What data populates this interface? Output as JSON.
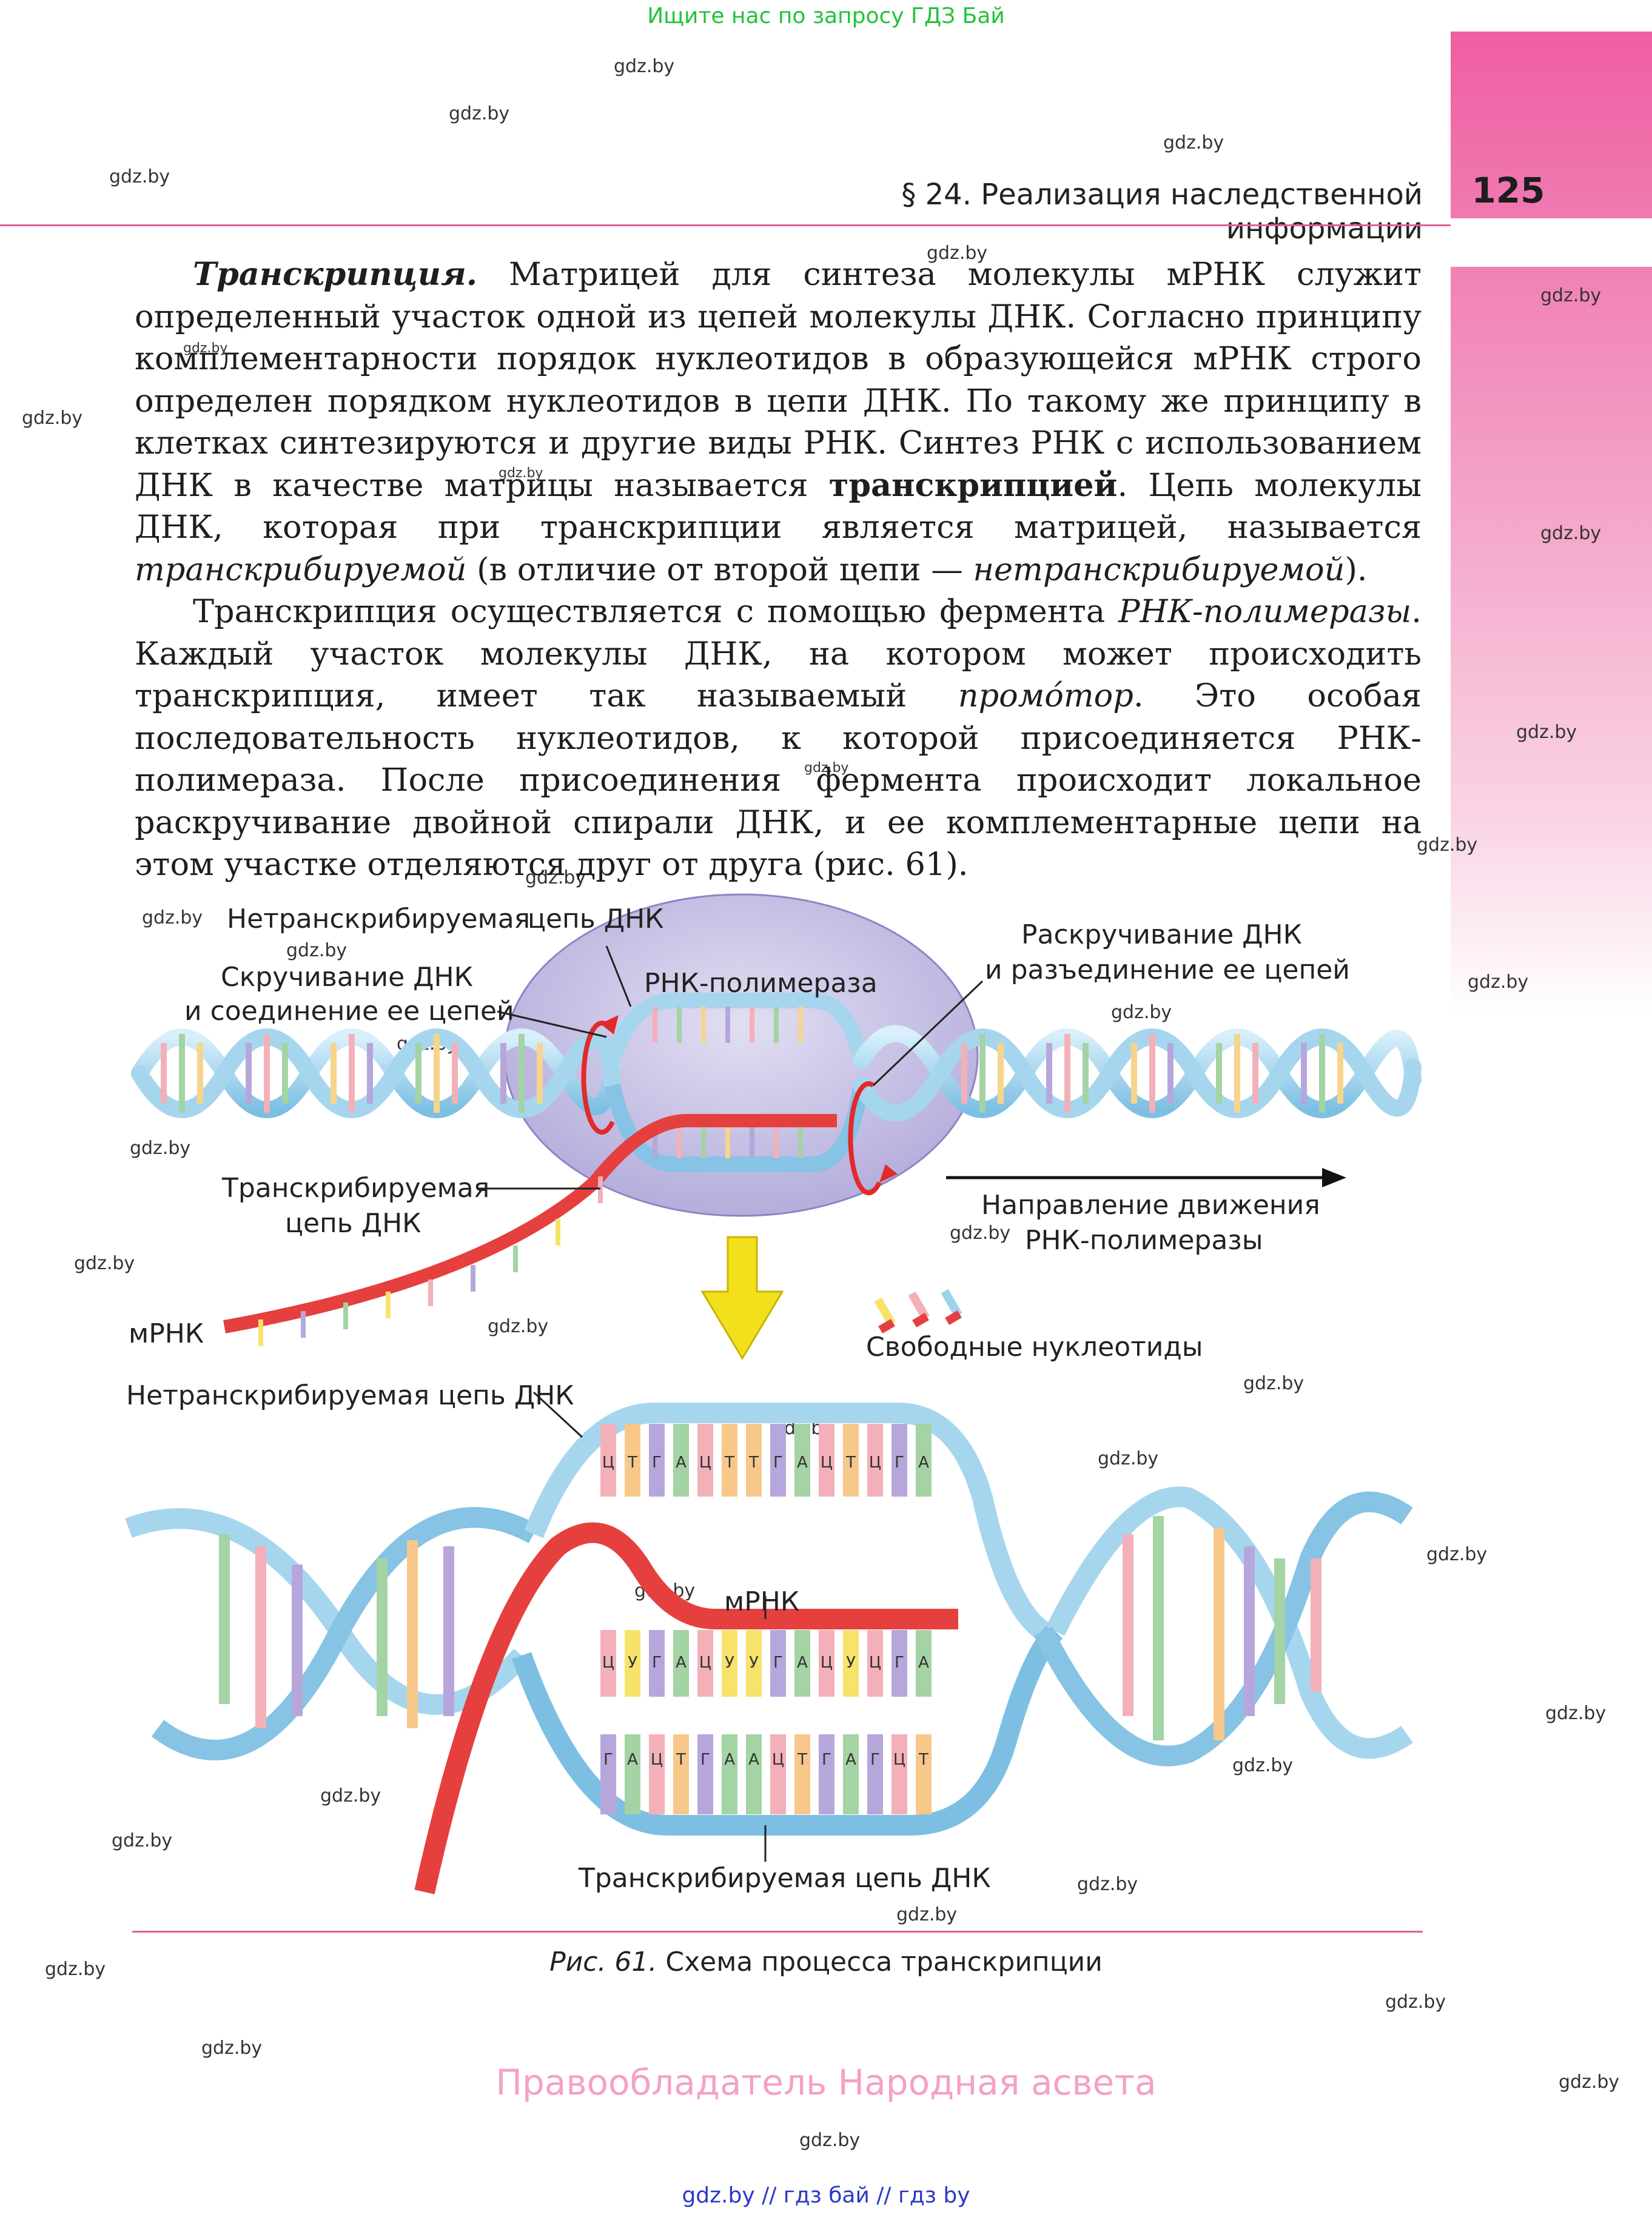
{
  "banner": "Ищите нас по запросу ГДЗ Бай",
  "header": {
    "section_title": "§ 24. Реализация наследственной информации",
    "page_number": "125"
  },
  "watermark": "gdz.by",
  "body": {
    "p1_term": "Транскрипция.",
    "p1_a": " Матрицей для синтеза молекулы мРНК служит определенный участок одной из цепей молекулы ДНК. Согласно принципу комплементарности порядок нуклеотидов в образующейся мРНК строго определен порядком нуклеотидов в цепи ДНК. По такому же принципу в клетках синтезируются и другие виды РНК. Синтез РНК с использованием ДНК в качестве матрицы называется ",
    "p1_bold": "транскрипцией",
    "p1_b": ". Цепь молекулы ДНК, которая при транскрипции является матрицей, называется ",
    "p1_it1": "транскрибируемой",
    "p1_c": " (в отличие от второй цепи — ",
    "p1_it2": "нетранскрибируемой",
    "p1_d": ").",
    "p2_a": "Транскрипция осуществляется с помощью фермента ",
    "p2_it1": "РНК-полимеразы",
    "p2_b": ". Каждый участок молекулы ДНК, на котором может происходить транскрипция, имеет так называемый ",
    "p2_it2": "промо́тор",
    "p2_c": ". Это особая последовательность нуклеотидов, к которой присоединяется РНК-полимераза. После присоединения фермента происходит локальное раскручивание двойной спирали ДНК, и ее комплементарные цепи на этом участке отделяются друг от друга (рис. 61)."
  },
  "figure": {
    "top_labels": {
      "nontranscribed_a": "Нетранскрибируемая",
      "nontranscribed_b": "цепь ДНК",
      "winding_1": "Скручивание ДНК",
      "winding_2": "и соединение ее цепей",
      "rna_polymerase": "РНК-полимераза",
      "unwinding_1": "Раскручивание ДНК",
      "unwinding_2": "и разъединение ее цепей",
      "transcribed_1": "Транскрибируемая",
      "transcribed_2": "цепь ДНК",
      "direction_1": "Направление движения",
      "direction_2": "РНК-полимеразы",
      "mrna": "мРНК",
      "free_nucleotides": "Свободные нуклеотиды"
    },
    "bottom_labels": {
      "nontranscribed": "Нетранскрибируемая цепь ДНК",
      "mrna": "мРНК",
      "transcribed": "Транскрибируемая цепь ДНК"
    },
    "top_strand_bases": [
      "Ц",
      "Т",
      "Г",
      "А",
      "Ц",
      "Т",
      "Т",
      "Г",
      "А",
      "Ц",
      "Т",
      "Ц",
      "Г",
      "А"
    ],
    "mrna_bases": [
      "Ц",
      "У",
      "Г",
      "А",
      "Ц",
      "У",
      "У",
      "Г",
      "А",
      "Ц",
      "У",
      "Ц",
      "Г",
      "А"
    ],
    "bottom_strand_bases": [
      "Г",
      "А",
      "Ц",
      "Т",
      "Г",
      "А",
      "А",
      "Ц",
      "Т",
      "Г",
      "А",
      "Г",
      "Ц",
      "Т"
    ],
    "caption_num": "Рис. 61.",
    "caption_text": " Схема процесса транскрипции"
  },
  "footer": {
    "owner": "Правообладатель Народная асвета",
    "links": "gdz.by  //  гдз бай  //  гдз by"
  },
  "colors": {
    "pink": "#e35d9b",
    "dna_blue": "#9fd2ec",
    "mrna_red": "#e5403e",
    "enzyme_purple": "#c9c3e6"
  }
}
